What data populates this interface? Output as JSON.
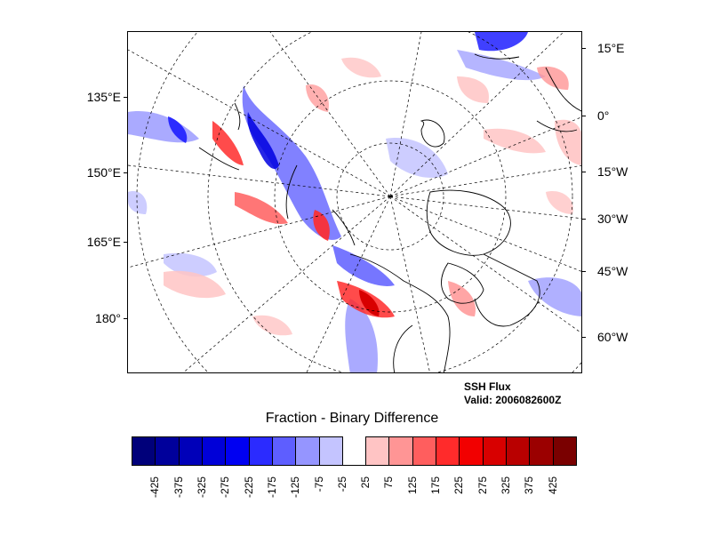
{
  "map": {
    "left_lon_labels": [
      "135°E",
      "150°E",
      "165°E",
      "180°"
    ],
    "right_lon_labels": [
      "15°E",
      "0°",
      "15°W",
      "30°W",
      "45°W",
      "60°W"
    ]
  },
  "caption": {
    "line1": "SSH Flux",
    "line2": "Valid: 2006082600Z"
  },
  "colorbar": {
    "title": "Fraction - Binary Difference",
    "labels": [
      "-425",
      "-375",
      "-325",
      "-275",
      "-225",
      "-175",
      "-125",
      "-75",
      "-25",
      "25",
      "75",
      "125",
      "175",
      "225",
      "275",
      "325",
      "375",
      "425"
    ],
    "colors": [
      "#00007a",
      "#00009b",
      "#0000b9",
      "#0000d8",
      "#0000f2",
      "#2b2bff",
      "#5e5eff",
      "#9595ff",
      "#c4c4ff",
      "#ffffff",
      "#ffc4c4",
      "#ff9595",
      "#ff5e5e",
      "#ff2b2b",
      "#f20000",
      "#d80000",
      "#b90000",
      "#9b0000",
      "#7a0000"
    ]
  }
}
